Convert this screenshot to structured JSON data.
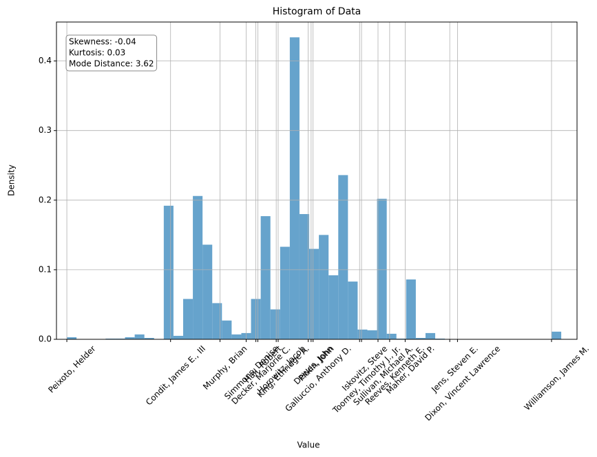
{
  "chart_data": {
    "type": "histogram",
    "title": "Histogram of Data",
    "x_label": "Value",
    "y_label": "Density",
    "annotation": [
      "Skewness: -0.04",
      "Kurtosis: 0.03",
      "Mode Distance: 3.62"
    ],
    "color": "#66a3cc",
    "grid": true,
    "bins": [
      0,
      1,
      2,
      3,
      4,
      5,
      6,
      7,
      8,
      9,
      10,
      11,
      12,
      13,
      14,
      15,
      16,
      17,
      18,
      19,
      20,
      21,
      22,
      23,
      24,
      25,
      26,
      27,
      28,
      29,
      30,
      31,
      32,
      33,
      34,
      35,
      36,
      37,
      38,
      39,
      40,
      41,
      42,
      43,
      44,
      45,
      46,
      47,
      48,
      49,
      50,
      51
    ],
    "counts": [
      0.003,
      0,
      0,
      0,
      0.001,
      0.001,
      0.003,
      0.007,
      0.002,
      0,
      0.192,
      0.005,
      0.058,
      0.206,
      0.136,
      0.052,
      0.027,
      0.007,
      0.009,
      0.058,
      0.177,
      0.043,
      0.133,
      0.434,
      0.18,
      0.13,
      0.15,
      0.092,
      0.236,
      0.083,
      0.014,
      0.013,
      0.202,
      0.008,
      0.001,
      0.086,
      0.002,
      0.009,
      0.001,
      0,
      0,
      0,
      0,
      0,
      0,
      0,
      0,
      0,
      0,
      0,
      0.011
    ],
    "xlim": [
      -1.07,
      52.63
    ],
    "ylim": [
      0,
      0.456
    ],
    "xticks": [
      {
        "value": 0,
        "label": "Peixoto, Helder"
      },
      {
        "value": 10.7,
        "label": "Condit, James E., III"
      },
      {
        "value": 15.8,
        "label": "Murphy, Brian"
      },
      {
        "value": 18.5,
        "label": "Simmons, Denise"
      },
      {
        "value": 19.5,
        "label": "Decker, Marjorie C."
      },
      {
        "value": 19.7,
        "label": "Hall, Robert"
      },
      {
        "value": 21.6,
        "label": "Horowitz, Jacob"
      },
      {
        "value": 21.8,
        "label": "King, Ethridge A."
      },
      {
        "value": 24.9,
        "label": "Dewes, John"
      },
      {
        "value": 25.2,
        "label": "Pitkin, John"
      },
      {
        "value": 25.4,
        "label": "Galluccio, Anthony D."
      },
      {
        "value": 30.2,
        "label": "Iskovitz, Steve"
      },
      {
        "value": 30.4,
        "label": "Toomey, Timothy J., Jr."
      },
      {
        "value": 32.1,
        "label": "Sullivan, Michael A."
      },
      {
        "value": 33.3,
        "label": "Reeves, Kenneth E."
      },
      {
        "value": 34.9,
        "label": "Maher, David P."
      },
      {
        "value": 39.5,
        "label": "Jens, Steven E."
      },
      {
        "value": 40.3,
        "label": "Dixon, Vincent Lawrence"
      },
      {
        "value": 50.0,
        "label": "Williamson, James M."
      }
    ],
    "yticks": [
      {
        "value": 0,
        "label": "0.0"
      },
      {
        "value": 0.1,
        "label": "0.1"
      },
      {
        "value": 0.2,
        "label": "0.2"
      },
      {
        "value": 0.3,
        "label": "0.3"
      },
      {
        "value": 0.4,
        "label": "0.4"
      }
    ]
  }
}
